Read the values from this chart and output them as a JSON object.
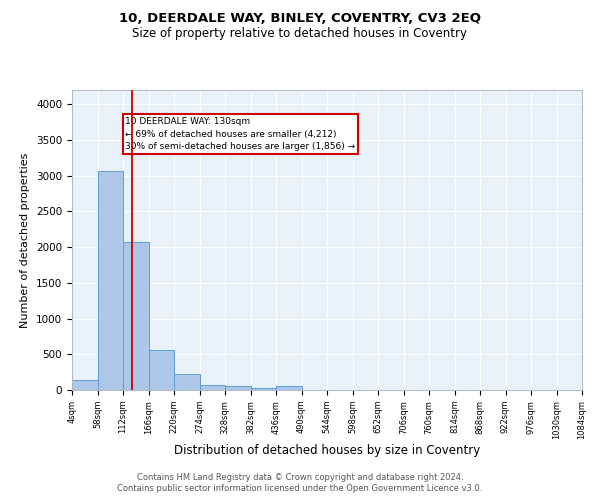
{
  "title1": "10, DEERDALE WAY, BINLEY, COVENTRY, CV3 2EQ",
  "title2": "Size of property relative to detached houses in Coventry",
  "xlabel": "Distribution of detached houses by size in Coventry",
  "ylabel": "Number of detached properties",
  "bar_edges": [
    4,
    58,
    112,
    166,
    220,
    274,
    328,
    382,
    436,
    490,
    544,
    598,
    652,
    706,
    760,
    814,
    868,
    922,
    976,
    1030,
    1084
  ],
  "bar_heights": [
    145,
    3060,
    2070,
    555,
    230,
    75,
    50,
    35,
    50,
    0,
    0,
    0,
    0,
    0,
    0,
    0,
    0,
    0,
    0,
    0
  ],
  "bar_color": "#aec6e8",
  "bar_edgecolor": "#5a9fd4",
  "vline_x": 130,
  "vline_color": "#cc0000",
  "annotation_text": "10 DEERDALE WAY: 130sqm\n← 69% of detached houses are smaller (4,212)\n30% of semi-detached houses are larger (1,856) →",
  "annotation_box_color": "white",
  "annotation_box_edgecolor": "#cc0000",
  "ylim": [
    0,
    4200
  ],
  "yticks": [
    0,
    500,
    1000,
    1500,
    2000,
    2500,
    3000,
    3500,
    4000
  ],
  "tick_labels": [
    "4sqm",
    "58sqm",
    "112sqm",
    "166sqm",
    "220sqm",
    "274sqm",
    "328sqm",
    "382sqm",
    "436sqm",
    "490sqm",
    "544sqm",
    "598sqm",
    "652sqm",
    "706sqm",
    "760sqm",
    "814sqm",
    "868sqm",
    "922sqm",
    "976sqm",
    "1030sqm",
    "1084sqm"
  ],
  "background_color": "#e8f0f8",
  "grid_color": "white",
  "footer1": "Contains HM Land Registry data © Crown copyright and database right 2024.",
  "footer2": "Contains public sector information licensed under the Open Government Licence v3.0."
}
